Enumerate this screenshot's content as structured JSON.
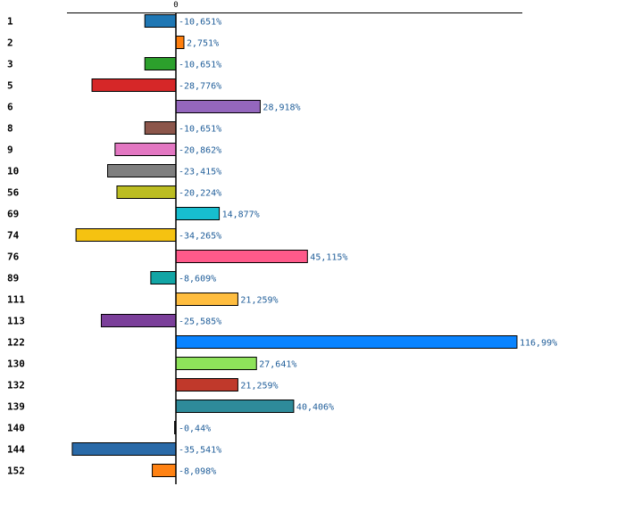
{
  "chart_data": {
    "type": "bar",
    "orientation": "horizontal",
    "title": "",
    "xlabel": "",
    "ylabel": "",
    "xlim": [
      -40,
      118
    ],
    "zero_tick_label": "0",
    "grid": false,
    "categories": [
      "1",
      "2",
      "3",
      "5",
      "6",
      "8",
      "9",
      "10",
      "56",
      "69",
      "74",
      "76",
      "89",
      "111",
      "113",
      "122",
      "130",
      "132",
      "139",
      "140",
      "144",
      "152"
    ],
    "values": [
      -10.651,
      2.751,
      -10.651,
      -28.776,
      28.918,
      -10.651,
      -20.862,
      -23.415,
      -20.224,
      14.877,
      -34.265,
      45.115,
      -8.609,
      21.259,
      -25.585,
      116.99,
      27.641,
      21.259,
      40.406,
      -0.44,
      -35.541,
      -8.098
    ],
    "value_labels": [
      "-10,651%",
      "2,751%",
      "-10,651%",
      "-28,776%",
      "28,918%",
      "-10,651%",
      "-20,862%",
      "-23,415%",
      "-20,224%",
      "14,877%",
      "-34,265%",
      "45,115%",
      "-8,609%",
      "21,259%",
      "-25,585%",
      "116,99%",
      "27,641%",
      "21,259%",
      "40,406%",
      "-0,44%",
      "-35,541%",
      "-8,098%"
    ],
    "colors": [
      "#1f77b4",
      "#ff7f0e",
      "#2ca02c",
      "#d62728",
      "#9467bd",
      "#8c564b",
      "#e377c2",
      "#7f7f7f",
      "#bcbd22",
      "#17becf",
      "#f5c211",
      "#ff5a8a",
      "#12a5a5",
      "#ffbd3f",
      "#7b3f9a",
      "#0a84ff",
      "#8ee35a",
      "#c0392b",
      "#2e8b9a",
      "#1a1a1a",
      "#2a6aa8",
      "#ff8213"
    ]
  }
}
